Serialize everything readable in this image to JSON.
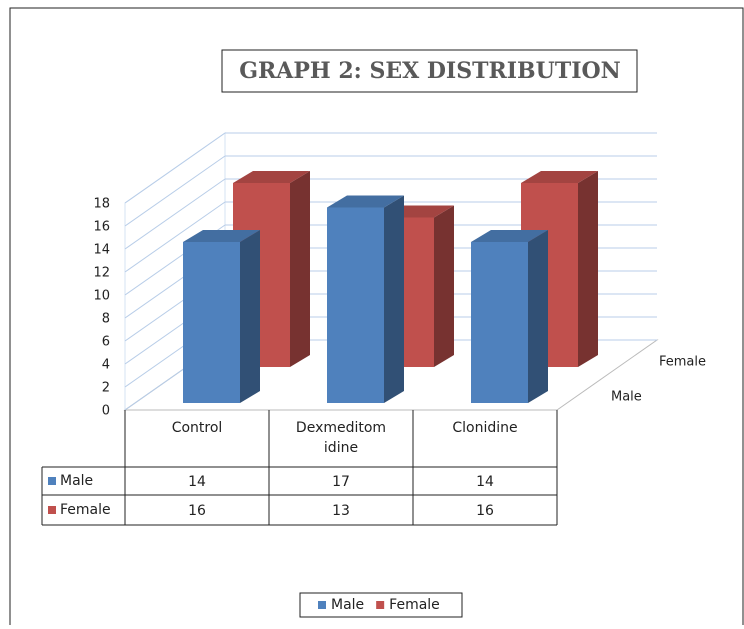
{
  "chart_data": {
    "type": "bar3d",
    "title": "GRAPH 2: SEX DISTRIBUTION",
    "categories": [
      "Control",
      "Dexmeditomidine",
      "Clonidine"
    ],
    "series": [
      {
        "name": "Male",
        "color": "#4f81bd",
        "values": [
          14,
          17,
          14
        ]
      },
      {
        "name": "Female",
        "color": "#c0504d",
        "values": [
          16,
          13,
          16
        ]
      }
    ],
    "ylim": [
      0,
      18
    ],
    "yticks": [
      0,
      2,
      4,
      6,
      8,
      10,
      12,
      14,
      16,
      18
    ],
    "grid": true,
    "data_table": true,
    "legend": "bottom"
  }
}
